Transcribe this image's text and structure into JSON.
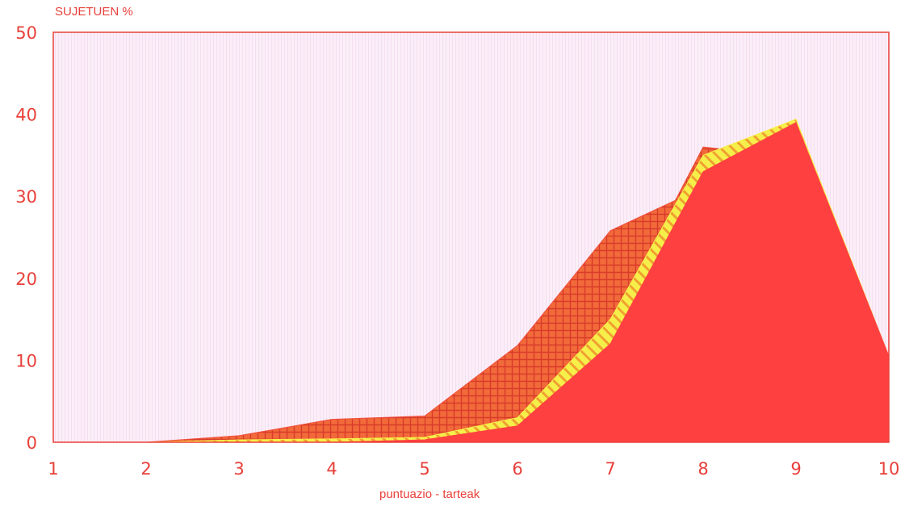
{
  "chart_data": {
    "type": "area",
    "ylabel": "SUJETUEN %",
    "xlabel": "puntuazio - tarteak",
    "x": [
      1,
      2,
      3,
      4,
      5,
      6,
      7,
      8,
      9,
      10
    ],
    "xlim": [
      1,
      10
    ],
    "ylim": [
      0,
      50
    ],
    "yticks": [
      0,
      10,
      20,
      30,
      40,
      50
    ],
    "grid": false,
    "series": [
      {
        "style": "cross-hatched",
        "color": "#f04e3c",
        "points": [
          [
            1,
            0
          ],
          [
            2,
            0
          ],
          [
            3,
            0.8
          ],
          [
            4,
            2.8
          ],
          [
            5,
            3.2
          ],
          [
            6,
            11.8
          ],
          [
            7,
            25.8
          ],
          [
            7.7,
            29.5
          ],
          [
            8,
            36
          ],
          [
            8.4,
            35.5
          ],
          [
            9,
            39.2
          ],
          [
            10,
            10.5
          ]
        ]
      },
      {
        "style": "diagonal-striped",
        "color": "#f6ef4a",
        "points": [
          [
            1,
            0
          ],
          [
            2,
            0
          ],
          [
            3,
            0.3
          ],
          [
            4,
            0.4
          ],
          [
            5,
            0.6
          ],
          [
            6,
            3
          ],
          [
            7,
            15
          ],
          [
            8,
            35
          ],
          [
            9,
            39.4
          ],
          [
            10,
            10.5
          ]
        ]
      },
      {
        "style": "solid",
        "color": "#ff4040",
        "points": [
          [
            1,
            0
          ],
          [
            2,
            0
          ],
          [
            3,
            0
          ],
          [
            4,
            0
          ],
          [
            5,
            0.3
          ],
          [
            6,
            2
          ],
          [
            7,
            12
          ],
          [
            8,
            33
          ],
          [
            9,
            39
          ],
          [
            10,
            10.5
          ]
        ]
      }
    ]
  }
}
